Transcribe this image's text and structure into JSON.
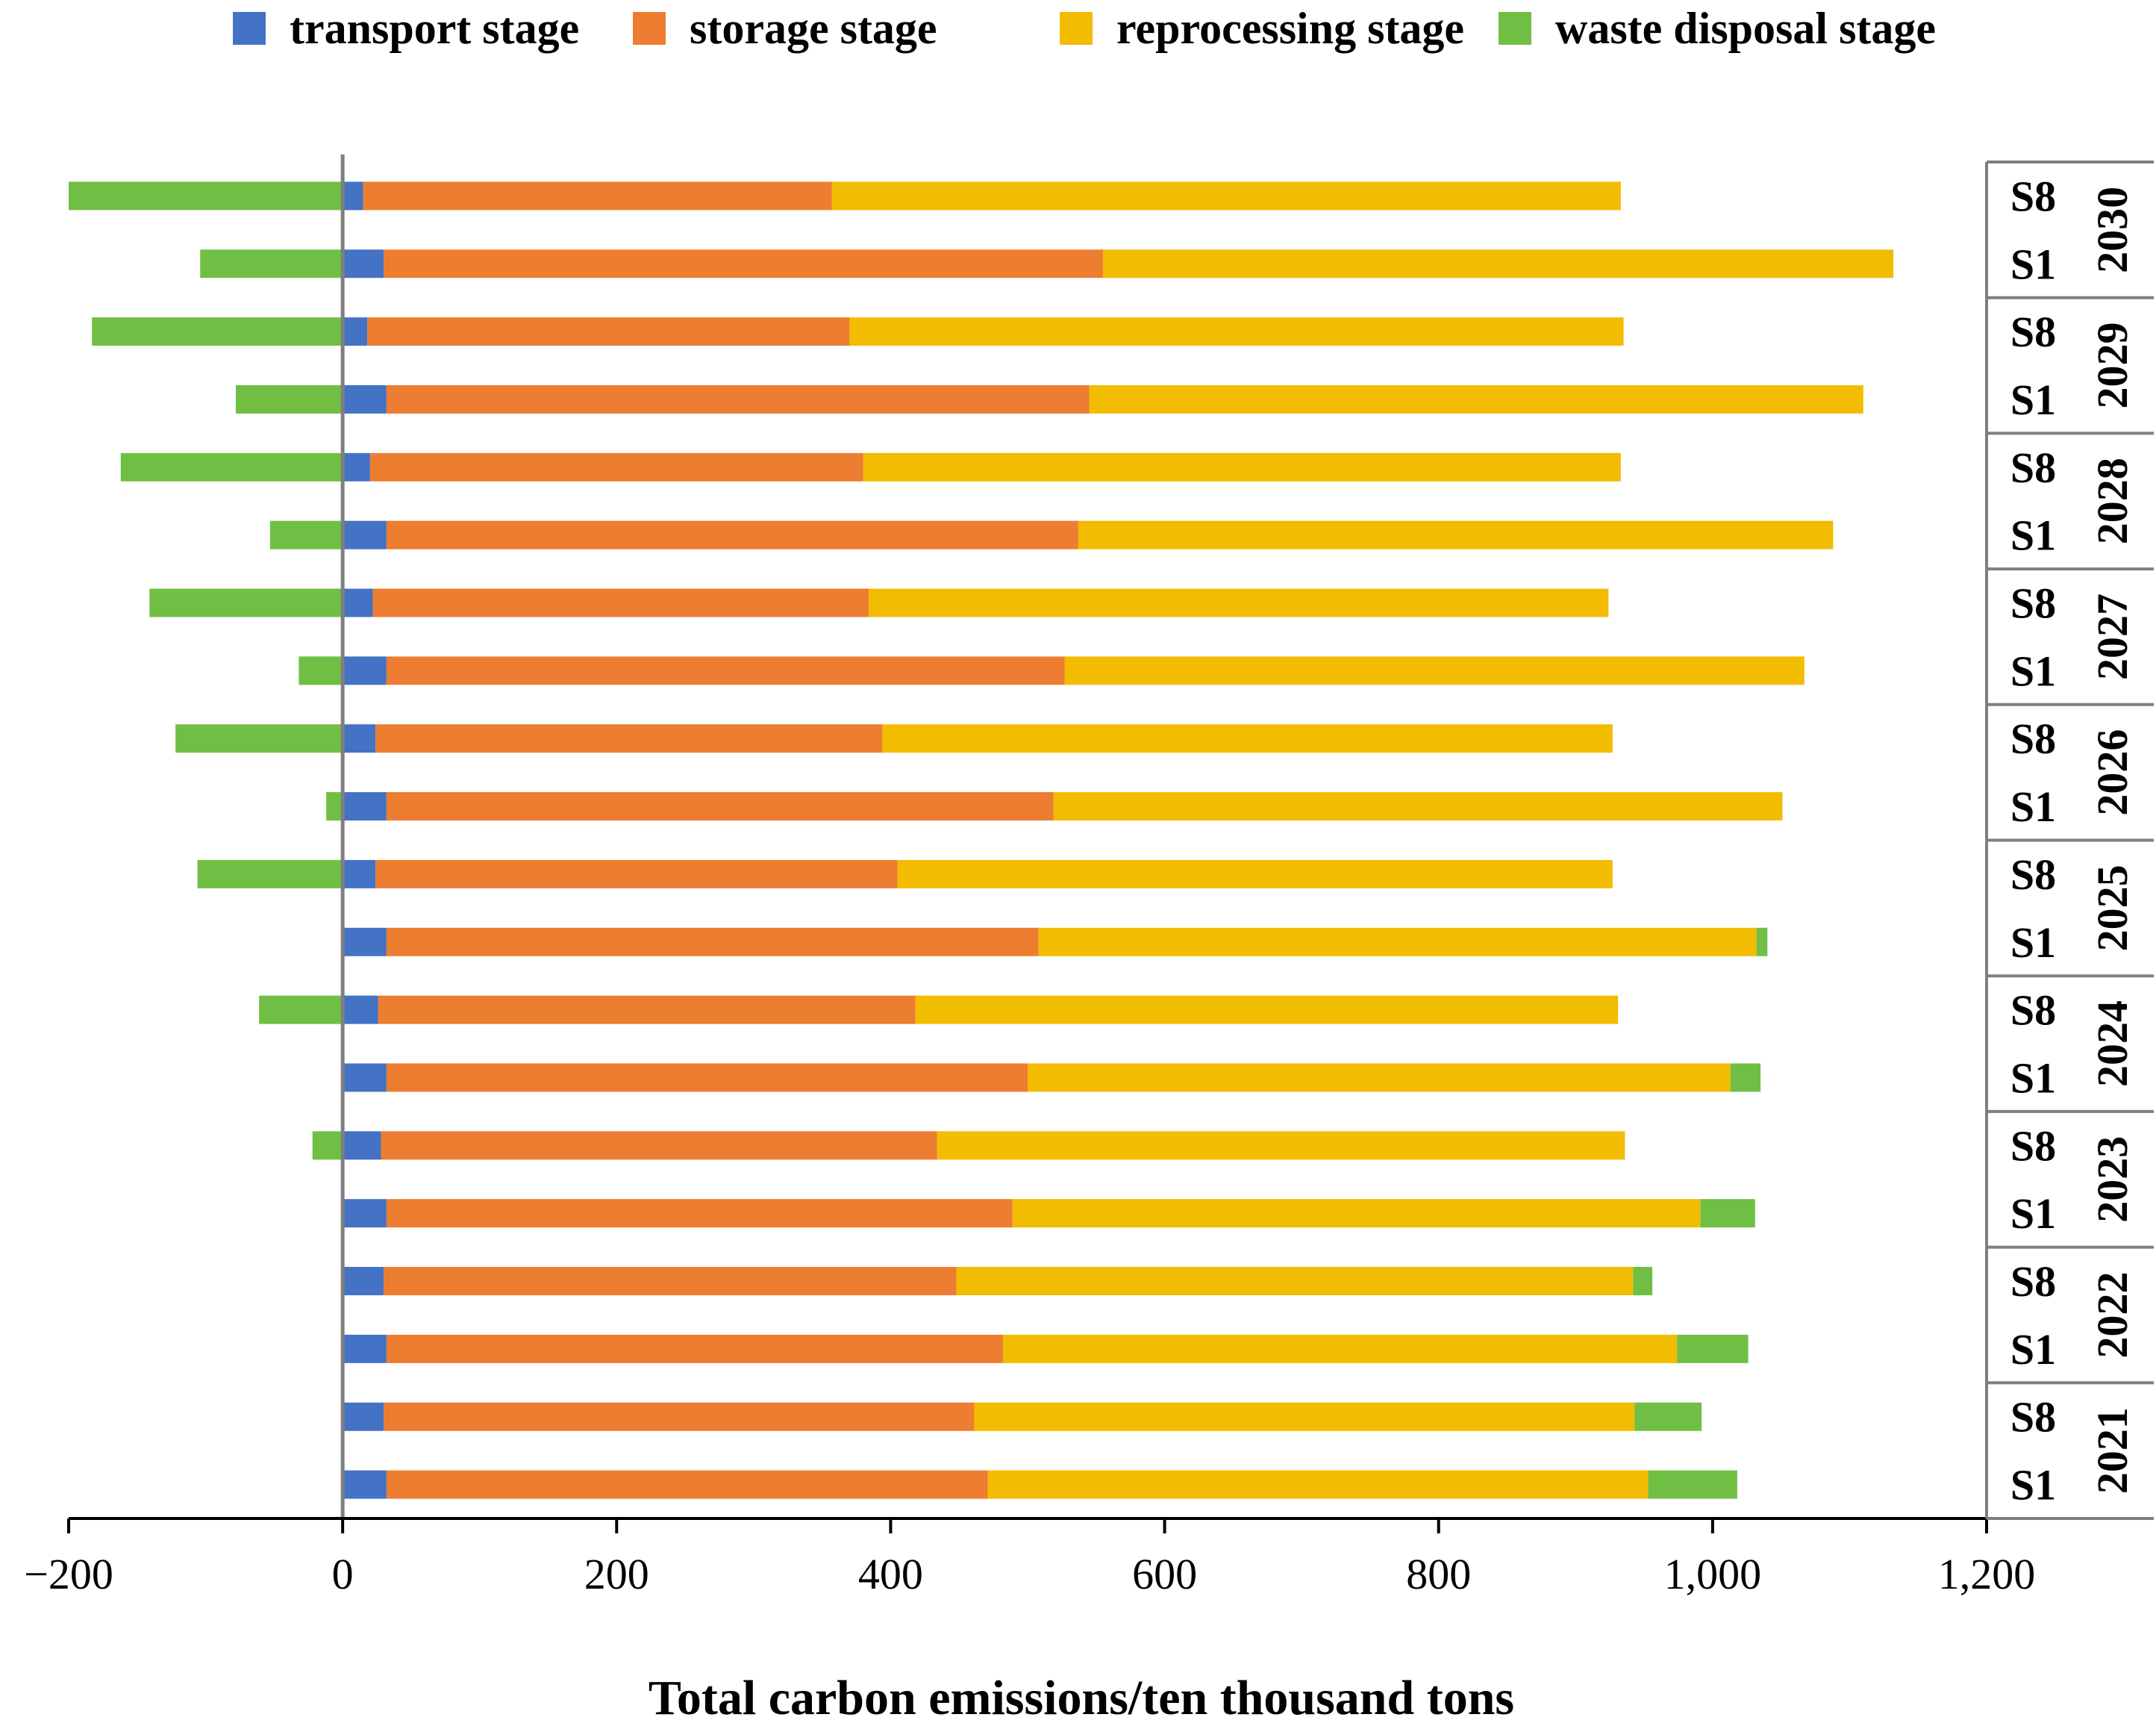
{
  "chart_data": {
    "type": "bar",
    "orientation": "horizontal",
    "stacked": true,
    "xlabel": "Total carbon emissions/ten thousand tons",
    "xlim": [
      -200,
      1200
    ],
    "xticks": [
      -200,
      0,
      200,
      400,
      600,
      800,
      1000,
      1200
    ],
    "xtick_labels": [
      "−200",
      "0",
      "200",
      "400",
      "600",
      "800",
      "1,000",
      "1,200"
    ],
    "legend_position": "top",
    "series": [
      {
        "name": "transport stage",
        "color": "#4472C4"
      },
      {
        "name": "storage stage",
        "color": "#ED7D31"
      },
      {
        "name": "reprocessing stage",
        "color": "#F2BC00"
      },
      {
        "name": "waste disposal stage",
        "color": "#70BF44"
      }
    ],
    "groups": [
      {
        "year": "2030",
        "bars": [
          {
            "scenario": "S8",
            "values": [
              15,
              342,
              576,
              -200
            ]
          },
          {
            "scenario": "S1",
            "values": [
              30,
              525,
              577,
              -104
            ]
          }
        ]
      },
      {
        "year": "2029",
        "bars": [
          {
            "scenario": "S8",
            "values": [
              18,
              352,
              565,
              -183
            ]
          },
          {
            "scenario": "S1",
            "values": [
              32,
              513,
              565,
              -78
            ]
          }
        ]
      },
      {
        "year": "2028",
        "bars": [
          {
            "scenario": "S8",
            "values": [
              20,
              360,
              553,
              -162
            ]
          },
          {
            "scenario": "S1",
            "values": [
              32,
              505,
              551,
              -53
            ]
          }
        ]
      },
      {
        "year": "2027",
        "bars": [
          {
            "scenario": "S8",
            "values": [
              22,
              362,
              540,
              -141
            ]
          },
          {
            "scenario": "S1",
            "values": [
              32,
              495,
              540,
              -32
            ]
          }
        ]
      },
      {
        "year": "2026",
        "bars": [
          {
            "scenario": "S8",
            "values": [
              24,
              370,
              533,
              -122
            ]
          },
          {
            "scenario": "S1",
            "values": [
              32,
              487,
              532,
              -12
            ]
          }
        ]
      },
      {
        "year": "2025",
        "bars": [
          {
            "scenario": "S8",
            "values": [
              24,
              381,
              522,
              -106
            ]
          },
          {
            "scenario": "S1",
            "values": [
              32,
              476,
              524,
              8
            ]
          }
        ]
      },
      {
        "year": "2024",
        "bars": [
          {
            "scenario": "S8",
            "values": [
              26,
              392,
              513,
              -61
            ]
          },
          {
            "scenario": "S1",
            "values": [
              32,
              468,
              513,
              22
            ]
          }
        ]
      },
      {
        "year": "2023",
        "bars": [
          {
            "scenario": "S8",
            "values": [
              28,
              406,
              502,
              -22
            ]
          },
          {
            "scenario": "S1",
            "values": [
              32,
              457,
              502,
              40
            ]
          }
        ]
      },
      {
        "year": "2022",
        "bars": [
          {
            "scenario": "S8",
            "values": [
              30,
              418,
              494,
              14
            ]
          },
          {
            "scenario": "S1",
            "values": [
              32,
              450,
              492,
              52
            ]
          }
        ]
      },
      {
        "year": "2021",
        "bars": [
          {
            "scenario": "S8",
            "values": [
              30,
              431,
              482,
              49
            ]
          },
          {
            "scenario": "S1",
            "values": [
              32,
              439,
              482,
              65
            ]
          }
        ]
      }
    ]
  }
}
